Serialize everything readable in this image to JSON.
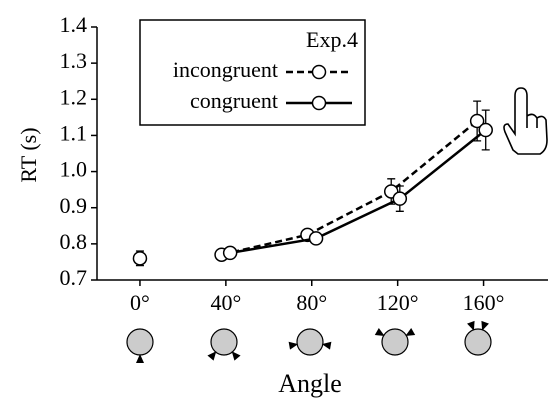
{
  "chart_data": {
    "type": "line",
    "x_label": "Angle",
    "y_label": "RT (s)",
    "legend_title": "Exp.4",
    "xlim": [
      -20,
      190
    ],
    "xticks": [
      {
        "value": 0,
        "label": "0°"
      },
      {
        "value": 40,
        "label": "40°"
      },
      {
        "value": 80,
        "label": "80°"
      },
      {
        "value": 120,
        "label": "120°"
      },
      {
        "value": 160,
        "label": "160°"
      }
    ],
    "ylim": [
      0.7,
      1.4
    ],
    "yticks": [
      {
        "value": 0.7,
        "label": "0.7"
      },
      {
        "value": 0.8,
        "label": "0.8"
      },
      {
        "value": 0.9,
        "label": "0.9"
      },
      {
        "value": 1.0,
        "label": "1.0"
      },
      {
        "value": 1.1,
        "label": "1.1"
      },
      {
        "value": 1.2,
        "label": "1.2"
      },
      {
        "value": 1.3,
        "label": "1.3"
      },
      {
        "value": 1.4,
        "label": "1.4"
      }
    ],
    "series": [
      {
        "name": "incongruent",
        "color": "#000000",
        "dash": true,
        "x": [
          38,
          78,
          117,
          157
        ],
        "values": [
          0.77,
          0.825,
          0.945,
          1.14
        ],
        "errors": [
          0.012,
          0.012,
          0.035,
          0.055
        ]
      },
      {
        "name": "congruent",
        "color": "#000000",
        "dash": false,
        "x": [
          42,
          82,
          121,
          161
        ],
        "values": [
          0.775,
          0.815,
          0.925,
          1.115
        ],
        "errors": [
          0.012,
          0.015,
          0.035,
          0.055
        ]
      },
      {
        "color": "#000000",
        "dash": false,
        "x": [
          0
        ],
        "values": [
          0.76
        ],
        "errors": [
          0.02
        ]
      }
    ]
  }
}
